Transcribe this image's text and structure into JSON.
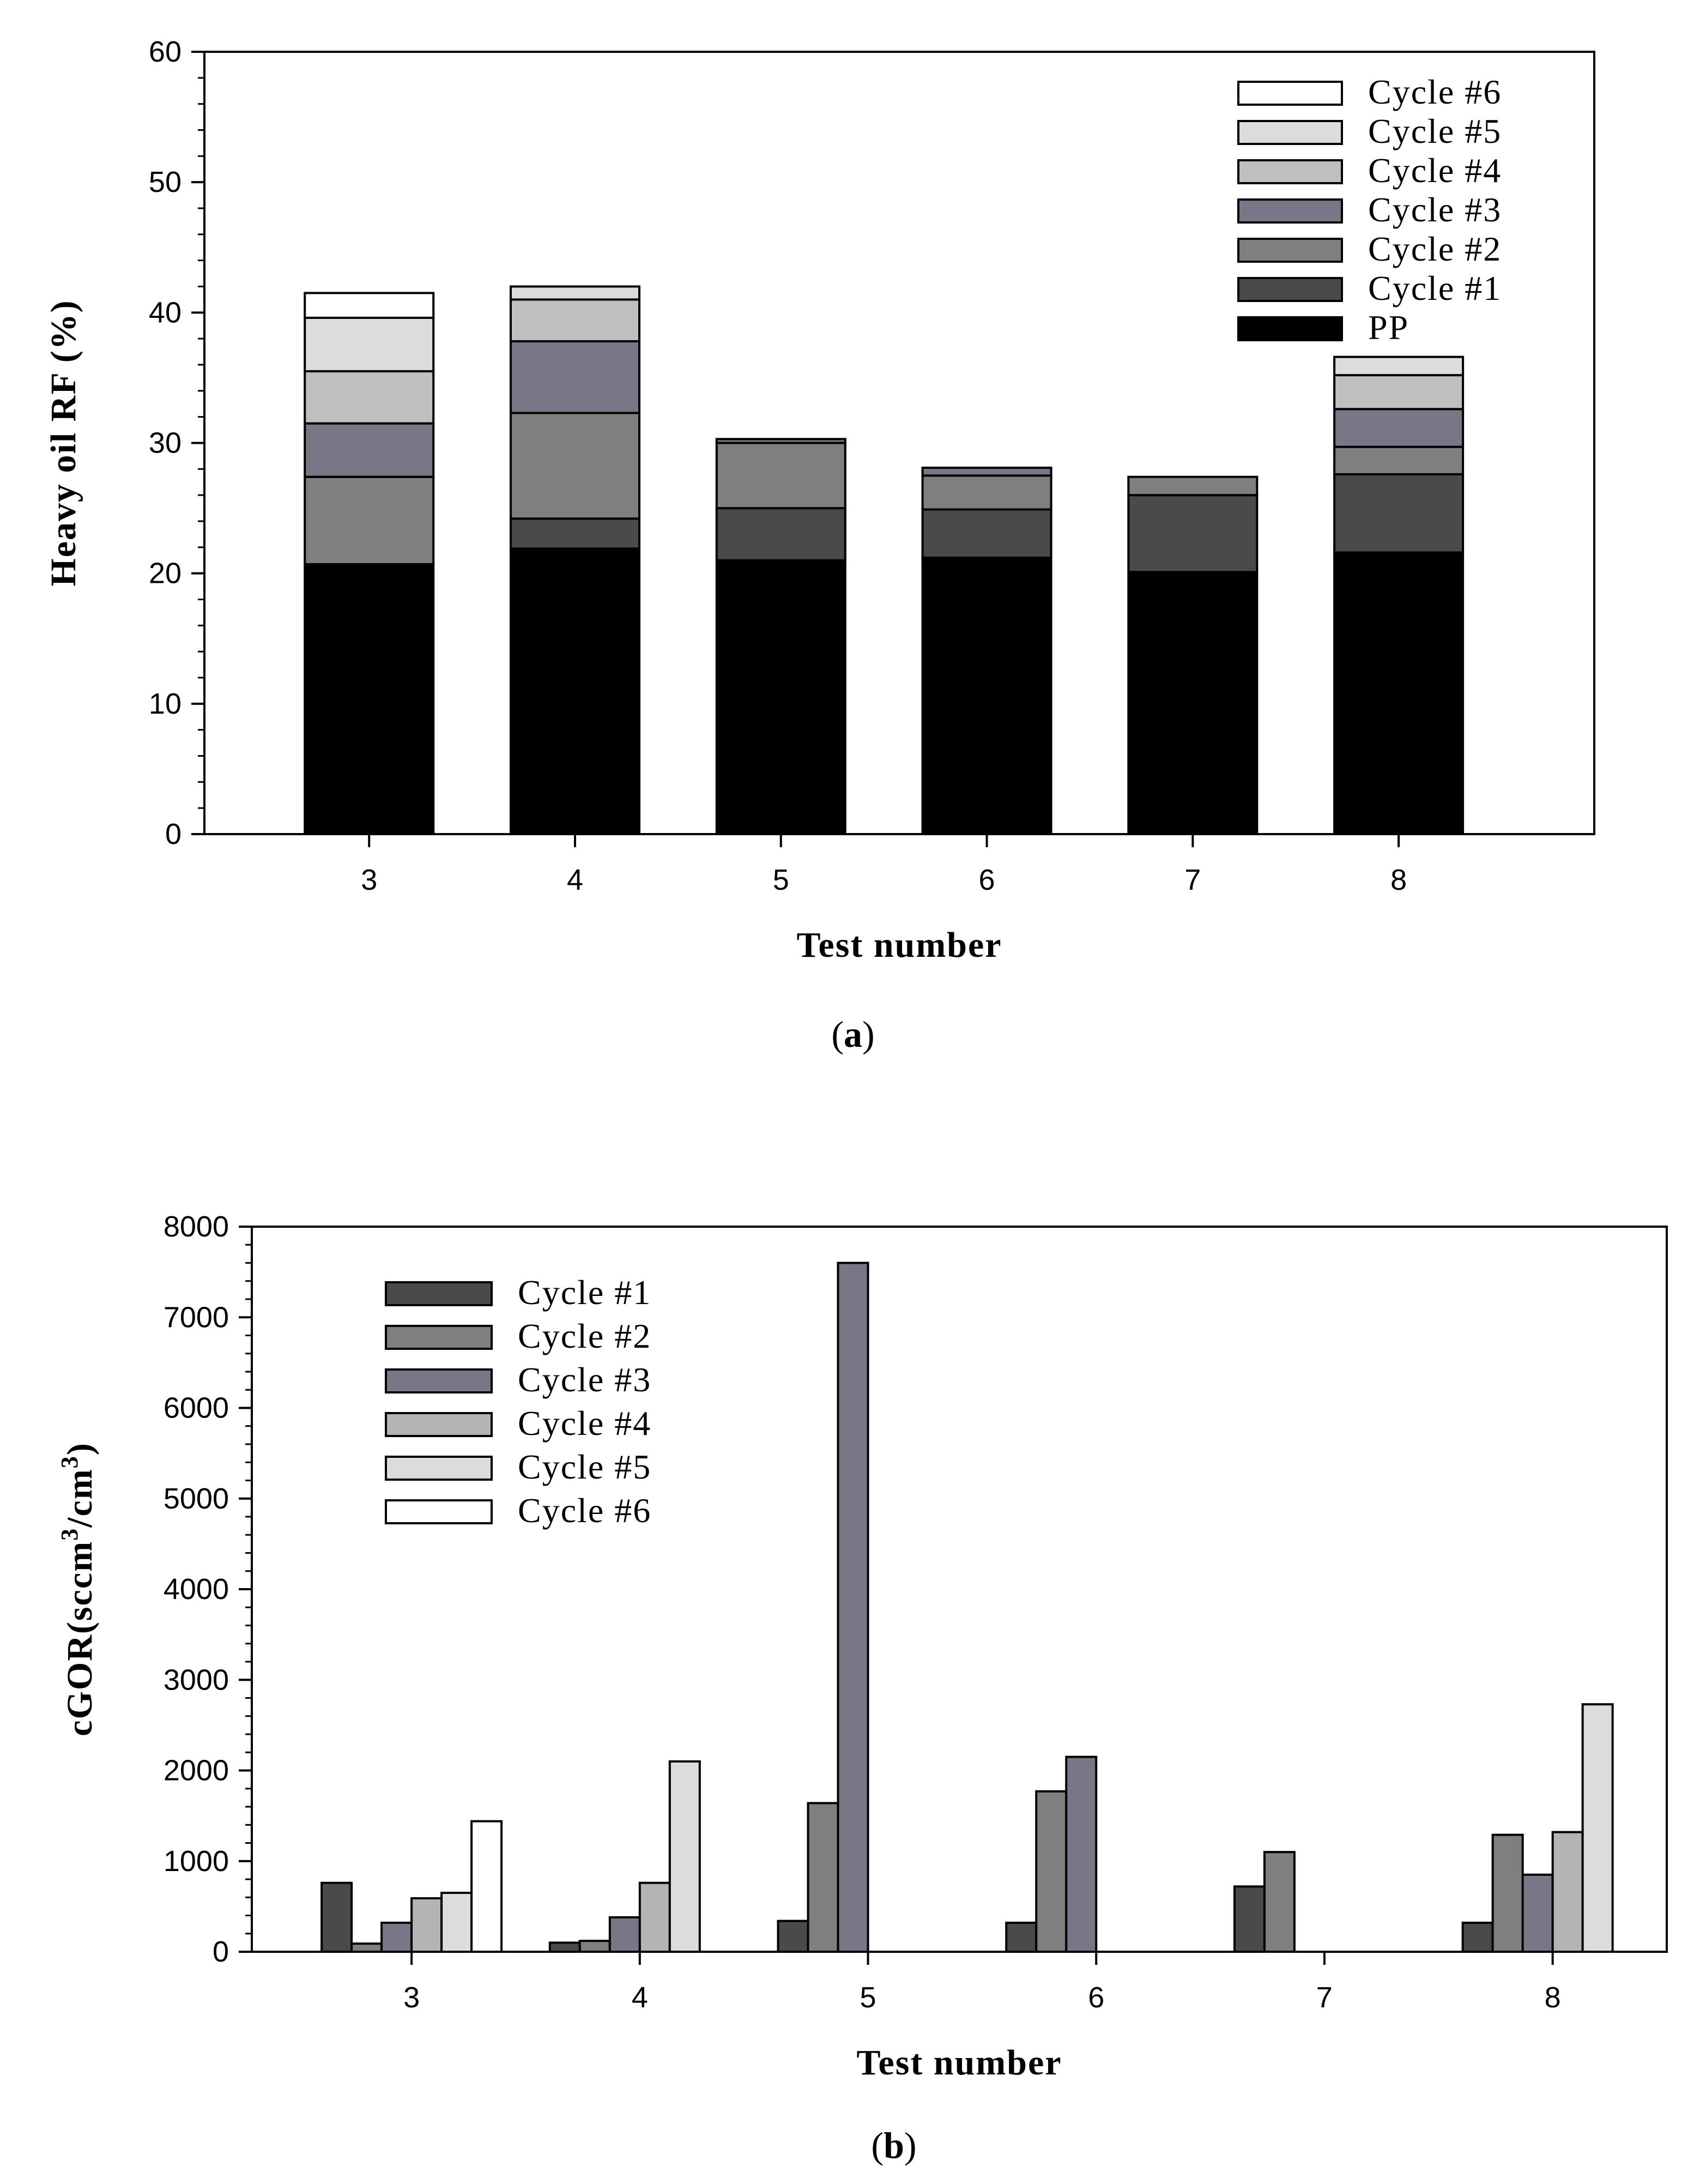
{
  "chart_data": [
    {
      "id": "a",
      "type": "bar",
      "stacked": true,
      "caption_letter": "a",
      "title": "",
      "xlabel": "Test number",
      "ylabel": "Heavy oil RF (%)",
      "categories": [
        "3",
        "4",
        "5",
        "6",
        "7",
        "8"
      ],
      "ylim": [
        0,
        60
      ],
      "yticks": [
        0,
        10,
        20,
        30,
        40,
        50,
        60
      ],
      "legend_position": "top-right",
      "series": [
        {
          "name": "PP",
          "color": "#000000",
          "values": [
            20.7,
            21.9,
            21.0,
            21.2,
            20.1,
            21.6
          ]
        },
        {
          "name": "Cycle #1",
          "color": "#4a4a4a",
          "values": [
            0.0,
            2.3,
            4.0,
            3.7,
            5.9,
            6.0
          ]
        },
        {
          "name": "Cycle #2",
          "color": "#7f7f7f",
          "values": [
            6.7,
            8.1,
            5.0,
            2.6,
            1.4,
            2.1
          ]
        },
        {
          "name": "Cycle #3",
          "color": "#777787",
          "values": [
            4.1,
            5.5,
            0.3,
            0.6,
            0.0,
            2.9
          ]
        },
        {
          "name": "Cycle #4",
          "color": "#bfbfbf",
          "values": [
            4.0,
            3.2,
            0.0,
            0.0,
            0.0,
            2.6
          ]
        },
        {
          "name": "Cycle #5",
          "color": "#dcdcdc",
          "values": [
            4.1,
            1.0,
            0.0,
            0.0,
            0.0,
            1.4
          ]
        },
        {
          "name": "Cycle #6",
          "color": "#ffffff",
          "values": [
            1.9,
            0.0,
            0.0,
            0.0,
            0.0,
            0.0
          ]
        }
      ],
      "legend_order": [
        "Cycle #6",
        "Cycle #5",
        "Cycle #4",
        "Cycle #3",
        "Cycle #2",
        "Cycle #1",
        "PP"
      ]
    },
    {
      "id": "b",
      "type": "bar",
      "stacked": false,
      "caption_letter": "b",
      "title": "",
      "xlabel": "Test number",
      "ylabel": "cGOR(sccm3/cm3)",
      "ylabel_parts": [
        "cGOR(sccm",
        "3",
        "/cm",
        "3",
        ")"
      ],
      "categories": [
        "3",
        "4",
        "5",
        "6",
        "7",
        "8"
      ],
      "ylim": [
        0,
        8000
      ],
      "yticks": [
        0,
        1000,
        2000,
        3000,
        4000,
        5000,
        6000,
        7000,
        8000
      ],
      "legend_position": "top-left",
      "series": [
        {
          "name": "Cycle #1",
          "color": "#4a4a4a",
          "values": [
            760,
            100,
            340,
            320,
            720,
            320
          ]
        },
        {
          "name": "Cycle #2",
          "color": "#7f7f7f",
          "values": [
            90,
            120,
            1640,
            1770,
            1100,
            1290
          ]
        },
        {
          "name": "Cycle #3",
          "color": "#777787",
          "values": [
            320,
            380,
            7600,
            2150,
            0,
            850
          ]
        },
        {
          "name": "Cycle #4",
          "color": "#b4b4b4",
          "values": [
            590,
            760,
            0,
            0,
            0,
            1320
          ]
        },
        {
          "name": "Cycle #5",
          "color": "#dcdcdc",
          "values": [
            650,
            2100,
            0,
            0,
            0,
            2730
          ]
        },
        {
          "name": "Cycle #6",
          "color": "#ffffff",
          "values": [
            1440,
            0,
            0,
            0,
            0,
            0
          ]
        }
      ],
      "legend_order": [
        "Cycle #1",
        "Cycle #2",
        "Cycle #3",
        "Cycle #4",
        "Cycle #5",
        "Cycle #6"
      ]
    }
  ]
}
